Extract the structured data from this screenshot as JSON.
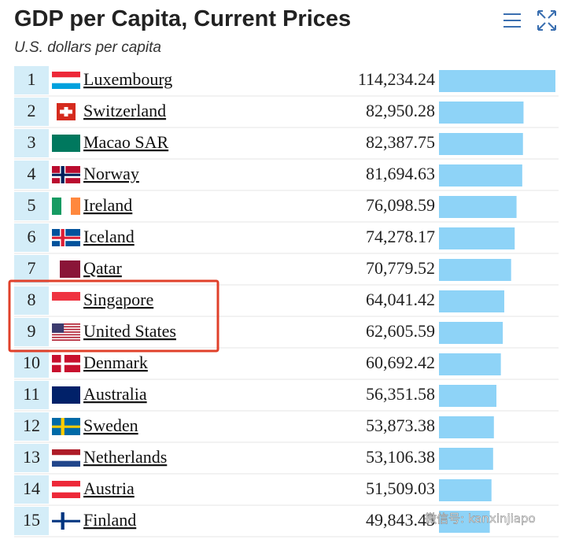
{
  "header": {
    "title": "GDP per Capita, Current Prices",
    "subtitle": "U.S. dollars per capita"
  },
  "table": {
    "rows": [
      {
        "rank": 1,
        "country": "Luxembourg",
        "value": 114234.24,
        "value_label": "114,234.24"
      },
      {
        "rank": 2,
        "country": "Switzerland",
        "value": 82950.28,
        "value_label": "82,950.28"
      },
      {
        "rank": 3,
        "country": "Macao SAR",
        "value": 82387.75,
        "value_label": "82,387.75"
      },
      {
        "rank": 4,
        "country": "Norway",
        "value": 81694.63,
        "value_label": "81,694.63"
      },
      {
        "rank": 5,
        "country": "Ireland",
        "value": 76098.59,
        "value_label": "76,098.59"
      },
      {
        "rank": 6,
        "country": "Iceland",
        "value": 74278.17,
        "value_label": "74,278.17"
      },
      {
        "rank": 7,
        "country": "Qatar",
        "value": 70779.52,
        "value_label": "70,779.52"
      },
      {
        "rank": 8,
        "country": "Singapore",
        "value": 64041.42,
        "value_label": "64,041.42"
      },
      {
        "rank": 9,
        "country": "United States",
        "value": 62605.59,
        "value_label": "62,605.59"
      },
      {
        "rank": 10,
        "country": "Denmark",
        "value": 60692.42,
        "value_label": "60,692.42"
      },
      {
        "rank": 11,
        "country": "Australia",
        "value": 56351.58,
        "value_label": "56,351.58"
      },
      {
        "rank": 12,
        "country": "Sweden",
        "value": 53873.38,
        "value_label": "53,873.38"
      },
      {
        "rank": 13,
        "country": "Netherlands",
        "value": 53106.38,
        "value_label": "53,106.38"
      },
      {
        "rank": 14,
        "country": "Austria",
        "value": 51509.03,
        "value_label": "51,509.03"
      },
      {
        "rank": 15,
        "country": "Finland",
        "value": 49843.43,
        "value_label": "49,843.43"
      }
    ]
  },
  "watermark": "微信号: kanxinjiapo"
}
